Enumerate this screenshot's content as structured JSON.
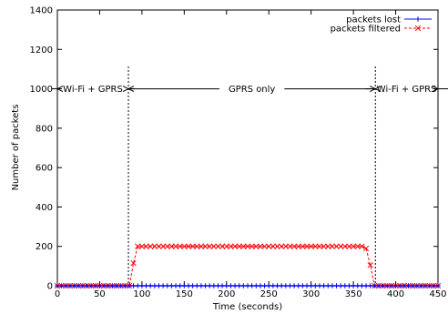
{
  "chart_data": {
    "type": "line",
    "xlabel": "Time (seconds)",
    "ylabel": "Number of packets",
    "xlim": [
      0,
      450
    ],
    "ylim": [
      0,
      1400
    ],
    "xticks": [
      "0",
      "50",
      "100",
      "150",
      "200",
      "250",
      "300",
      "350",
      "400",
      "450"
    ],
    "yticks": [
      "0",
      "200",
      "400",
      "600",
      "800",
      "1000",
      "1200",
      "1400"
    ],
    "legend_position": "top-right",
    "series": [
      {
        "name": "packets lost",
        "color": "#0000ff",
        "marker": "plus",
        "line": "solid",
        "x": [
          0,
          5,
          10,
          15,
          20,
          25,
          30,
          35,
          40,
          45,
          50,
          55,
          60,
          65,
          70,
          75,
          80,
          85,
          90,
          95,
          100,
          105,
          110,
          115,
          120,
          125,
          130,
          135,
          140,
          145,
          150,
          155,
          160,
          165,
          170,
          175,
          180,
          185,
          190,
          195,
          200,
          205,
          210,
          215,
          220,
          225,
          230,
          235,
          240,
          245,
          250,
          255,
          260,
          265,
          270,
          275,
          280,
          285,
          290,
          295,
          300,
          305,
          310,
          315,
          320,
          325,
          330,
          335,
          340,
          345,
          350,
          355,
          360,
          365,
          370,
          375,
          380,
          385,
          390,
          395,
          400,
          405,
          410,
          415,
          420,
          425,
          430,
          435,
          440,
          445,
          450
        ],
        "y": [
          0,
          0,
          0,
          0,
          0,
          0,
          0,
          0,
          0,
          0,
          0,
          0,
          0,
          0,
          0,
          0,
          0,
          0,
          0,
          0,
          0,
          0,
          0,
          0,
          0,
          0,
          0,
          0,
          0,
          0,
          0,
          0,
          0,
          0,
          0,
          0,
          0,
          0,
          0,
          0,
          0,
          0,
          0,
          0,
          0,
          0,
          0,
          0,
          0,
          0,
          0,
          0,
          0,
          0,
          0,
          0,
          0,
          0,
          0,
          0,
          0,
          0,
          0,
          0,
          0,
          0,
          0,
          0,
          0,
          0,
          0,
          0,
          0,
          0,
          0,
          0,
          0,
          0,
          0,
          0,
          0,
          0,
          0,
          0,
          0,
          0,
          0,
          0,
          0,
          0,
          0
        ]
      },
      {
        "name": "packets filtered",
        "color": "#ff0000",
        "marker": "x",
        "line": "dashed",
        "x": [
          0,
          5,
          10,
          15,
          20,
          25,
          30,
          35,
          40,
          45,
          50,
          55,
          60,
          65,
          70,
          75,
          80,
          85,
          90,
          95,
          100,
          105,
          110,
          115,
          120,
          125,
          130,
          135,
          140,
          145,
          150,
          155,
          160,
          165,
          170,
          175,
          180,
          185,
          190,
          195,
          200,
          205,
          210,
          215,
          220,
          225,
          230,
          235,
          240,
          245,
          250,
          255,
          260,
          265,
          270,
          275,
          280,
          285,
          290,
          295,
          300,
          305,
          310,
          315,
          320,
          325,
          330,
          335,
          340,
          345,
          350,
          355,
          360,
          365,
          370,
          375,
          380,
          385,
          390,
          395,
          400,
          405,
          410,
          415,
          420,
          425,
          430,
          435,
          440,
          445,
          450
        ],
        "y": [
          0,
          0,
          0,
          0,
          0,
          0,
          0,
          0,
          0,
          0,
          0,
          0,
          0,
          0,
          0,
          0,
          0,
          0,
          115,
          200,
          200,
          200,
          200,
          200,
          200,
          200,
          200,
          200,
          200,
          200,
          200,
          200,
          200,
          200,
          200,
          200,
          200,
          200,
          200,
          200,
          200,
          200,
          200,
          200,
          200,
          200,
          200,
          200,
          200,
          200,
          200,
          200,
          200,
          200,
          200,
          200,
          200,
          200,
          200,
          200,
          200,
          200,
          200,
          200,
          200,
          200,
          200,
          200,
          200,
          200,
          200,
          200,
          200,
          190,
          105,
          0,
          0,
          0,
          0,
          0,
          0,
          0,
          0,
          0,
          0,
          0,
          0,
          0,
          0,
          0,
          0
        ]
      }
    ],
    "vlines": [
      84,
      376
    ],
    "annotations": [
      {
        "label": "Wi-Fi + GPRS",
        "from": 0,
        "to": 84,
        "y": 1000
      },
      {
        "label": "GPRS only",
        "from": 84,
        "to": 376,
        "y": 1000
      },
      {
        "label": "Wi-Fi + GPRS",
        "from": 376,
        "to": 450,
        "y": 1000
      }
    ]
  }
}
